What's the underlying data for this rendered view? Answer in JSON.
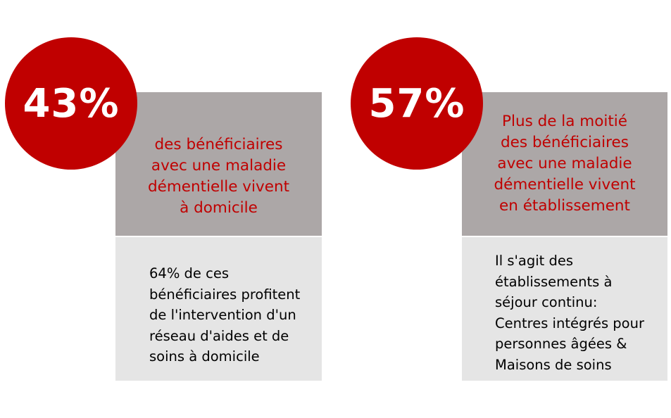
{
  "cards": [
    {
      "percent": "43%",
      "headline": "des bénéficiaires\navec une maladie\ndémentielle vivent\nà domicile",
      "detail": "64% de ces\nbénéficiaires profitent\nde l'intervention d'un\nréseau d'aides et de\nsoins à domicile"
    },
    {
      "percent": "57%",
      "headline": "Plus de la moitié\ndes bénéficiaires\navec une maladie\ndémentielle vivent\nen établissement",
      "detail": "Il s'agit des\nétablissements à\nséjour continu:\nCentres intégrés pour\npersonnes âgées &\nMaisons de soins"
    }
  ],
  "colors": {
    "accent_red": "#c00000",
    "header_gray": "#aca7a7",
    "body_gray": "#e5e5e5"
  }
}
